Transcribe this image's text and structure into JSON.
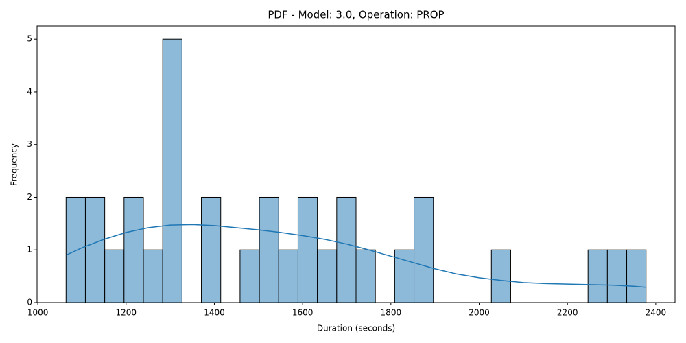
{
  "chart_data": {
    "type": "histogram",
    "title": "PDF - Model: 3.0, Operation: PROP",
    "x_label": "Duration (seconds)",
    "y_label": "Frequency",
    "bins": [
      1064.0,
      1107.8,
      1151.6,
      1195.4,
      1239.2,
      1283.0,
      1326.8,
      1370.6,
      1414.4,
      1458.2,
      1502.0,
      1545.8,
      1589.6,
      1633.4,
      1677.2,
      1721.0,
      1764.8,
      1808.6,
      1852.4,
      1896.2,
      1940.0,
      1983.8,
      2027.6,
      2071.4,
      2115.2,
      2159.0,
      2202.8,
      2246.6,
      2290.4,
      2334.2,
      2378.0
    ],
    "counts": [
      2,
      2,
      1,
      2,
      1,
      5,
      0,
      2,
      0,
      1,
      2,
      1,
      2,
      1,
      2,
      1,
      0,
      1,
      2,
      0,
      0,
      0,
      1,
      0,
      0,
      0,
      0,
      1,
      1,
      1
    ],
    "color": "#8ebad9",
    "edge_color": "#000000",
    "kde": {
      "color": "#1f77b4",
      "x": [
        1064,
        1100,
        1150,
        1200,
        1250,
        1300,
        1350,
        1400,
        1450,
        1500,
        1550,
        1600,
        1650,
        1700,
        1750,
        1800,
        1850,
        1900,
        1950,
        2000,
        2050,
        2100,
        2150,
        2200,
        2250,
        2300,
        2350,
        2378
      ],
      "y": [
        0.9,
        1.04,
        1.2,
        1.33,
        1.42,
        1.47,
        1.48,
        1.46,
        1.42,
        1.38,
        1.33,
        1.27,
        1.2,
        1.11,
        1.0,
        0.88,
        0.76,
        0.64,
        0.54,
        0.47,
        0.42,
        0.38,
        0.36,
        0.35,
        0.34,
        0.33,
        0.31,
        0.29
      ]
    },
    "xlim": [
      998.3,
      2443.7
    ],
    "ylim": [
      0,
      5.25
    ],
    "xticks": [
      1000,
      1200,
      1400,
      1600,
      1800,
      2000,
      2200,
      2400
    ],
    "yticks": [
      0,
      1,
      2,
      3,
      4,
      5
    ]
  }
}
